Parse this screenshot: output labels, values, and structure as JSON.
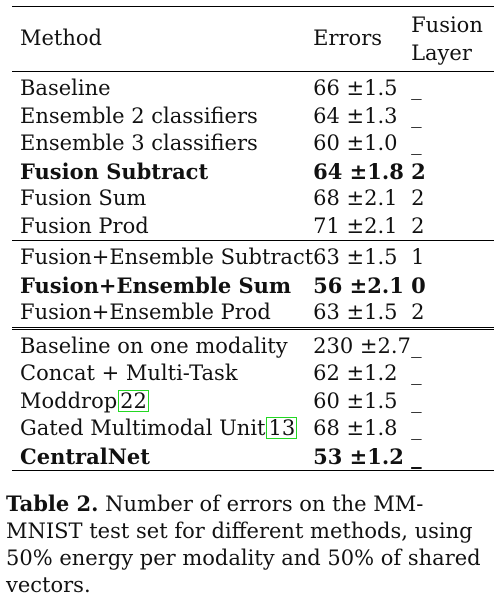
{
  "table": {
    "header": {
      "method": "Method",
      "errors": "Errors",
      "layer_line1": "Fusion",
      "layer_line2": "Layer"
    },
    "groups": [
      [
        {
          "method": "Baseline",
          "errors": "66 ±1.5",
          "layer": "_",
          "bold": false
        },
        {
          "method": "Ensemble 2 classifiers",
          "errors": "64 ±1.3",
          "layer": "_",
          "bold": false
        },
        {
          "method": "Ensemble 3 classifiers",
          "errors": "60 ±1.0",
          "layer": "_",
          "bold": false
        },
        {
          "method": "Fusion Subtract",
          "errors": "64 ±1.8",
          "layer": "2",
          "bold": true
        },
        {
          "method": "Fusion Sum",
          "errors": "68 ±2.1",
          "layer": "2",
          "bold": false
        },
        {
          "method": "Fusion Prod",
          "errors": "71 ±2.1",
          "layer": "2",
          "bold": false
        }
      ],
      [
        {
          "method": "Fusion+Ensemble Subtract",
          "errors": "63 ±1.5",
          "layer": "1",
          "bold": false
        },
        {
          "method": "Fusion+Ensemble Sum",
          "errors": "56 ±2.1",
          "layer": "0",
          "bold": true
        },
        {
          "method": "Fusion+Ensemble Prod",
          "errors": "63 ±1.5",
          "layer": "2",
          "bold": false
        }
      ],
      [
        {
          "method": "Baseline on one modality",
          "errors": "230 ±2.7",
          "layer": "_",
          "bold": false
        },
        {
          "method": "Concat + Multi-Task",
          "errors": "62 ±1.2",
          "layer": "_",
          "bold": false
        },
        {
          "method": "Moddrop",
          "cite": "22",
          "errors": "60 ±1.5",
          "layer": "_",
          "bold": false
        },
        {
          "method": "Gated Multimodal Unit",
          "cite": "13",
          "errors": "68 ±1.8",
          "layer": "_",
          "bold": false
        },
        {
          "method": "CentralNet",
          "errors": "53 ±1.2",
          "layer": "_",
          "bold": true
        }
      ]
    ]
  },
  "caption": {
    "label": "Table 2.",
    "text": " Number of errors on the MM-MNIST test set for different methods, using 50% energy per modality and 50% of shared vectors."
  }
}
